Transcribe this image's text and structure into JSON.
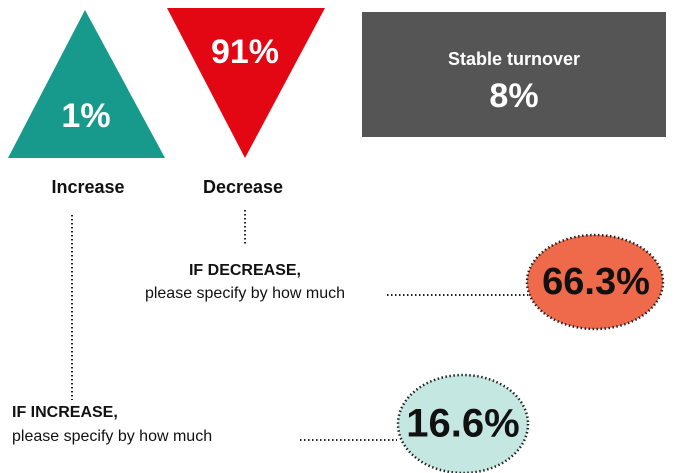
{
  "increase": {
    "value": "1%",
    "label": "Increase"
  },
  "decrease": {
    "value": "91%",
    "label": "Decrease"
  },
  "stable": {
    "label": "Stable turnover",
    "value": "8%"
  },
  "if_decrease": {
    "heading": "IF DECREASE,",
    "text": "please specify by how much",
    "value": "66.3%"
  },
  "if_increase": {
    "heading": "IF INCREASE,",
    "text": "please specify by how much",
    "value": "16.6%"
  }
}
